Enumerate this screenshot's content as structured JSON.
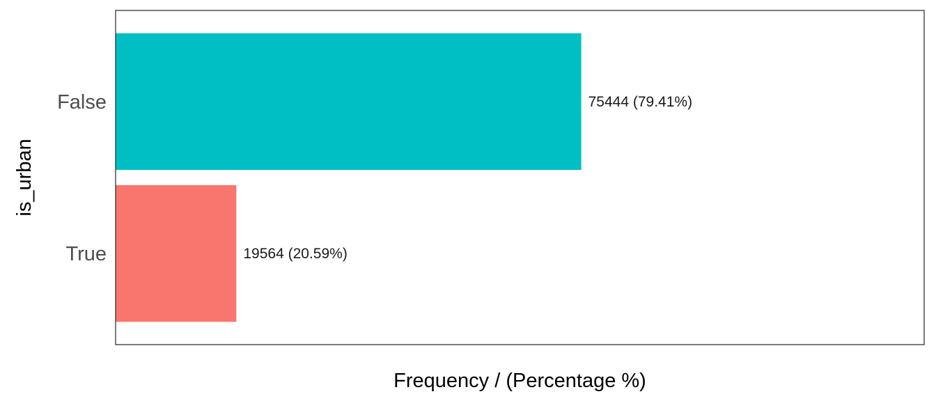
{
  "chart_data": {
    "type": "bar",
    "orientation": "horizontal",
    "categories": [
      "False",
      "True"
    ],
    "values": [
      75444,
      19564
    ],
    "data_labels": [
      "75444 (79.41%)",
      "19564 (20.59%)"
    ],
    "colors": [
      "#00BFC4",
      "#F8766D"
    ],
    "xlabel": "Frequency / (Percentage %)",
    "ylabel": "is_urban",
    "xlim": [
      0,
      131000
    ],
    "grid": false,
    "legend": "none",
    "frame_color": "#333333"
  }
}
